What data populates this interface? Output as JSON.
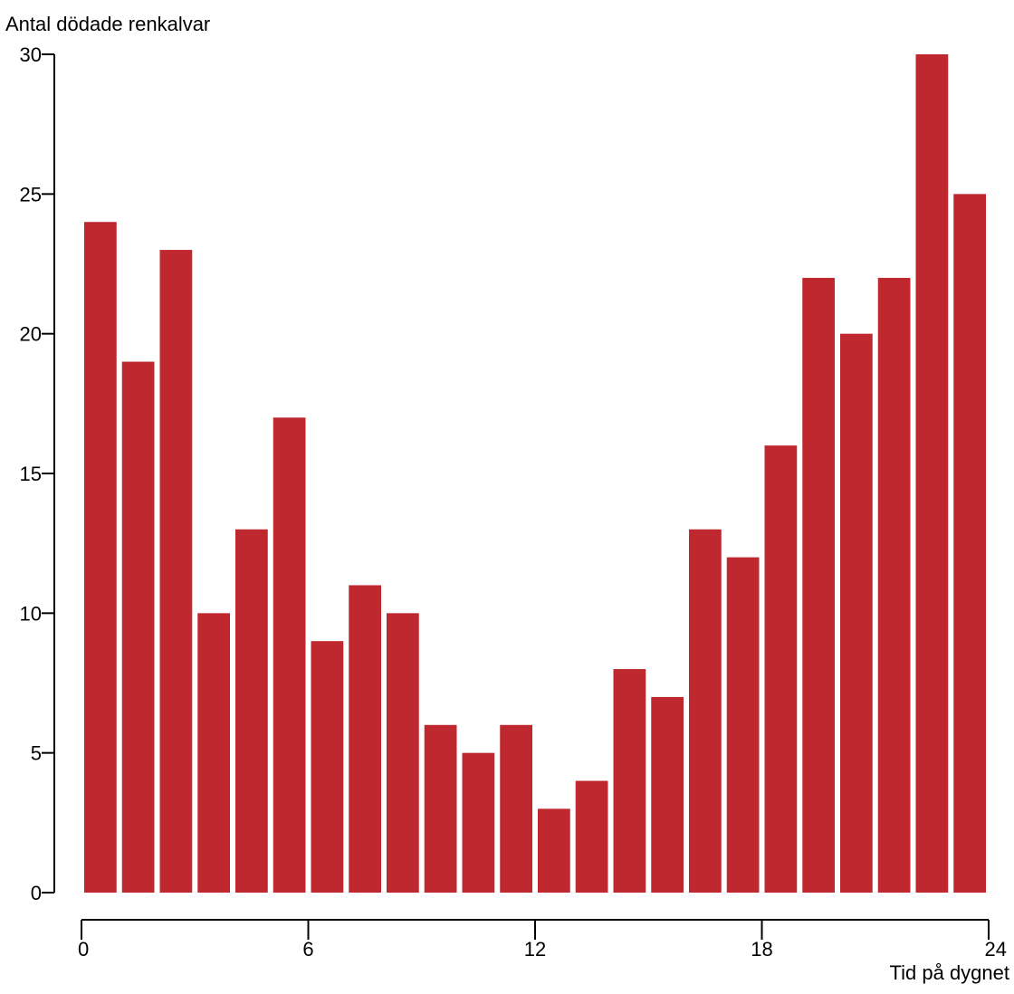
{
  "chart_data": {
    "type": "bar",
    "ylabel": "Antal dödade renkalvar",
    "xlabel": "Tid på dygnet",
    "x_ticks": [
      "0",
      "6",
      "12",
      "18",
      "24"
    ],
    "y_ticks": [
      "0",
      "5",
      "10",
      "15",
      "20",
      "25",
      "30"
    ],
    "ylim": [
      0,
      30
    ],
    "xlim": [
      0,
      24
    ],
    "bar_color": "#c0282f",
    "series": [
      {
        "values": [
          24,
          19,
          23,
          10,
          13,
          17,
          9,
          11,
          10,
          6,
          5,
          6,
          3,
          4,
          8,
          7,
          13,
          12,
          16,
          22,
          20,
          22,
          30,
          25
        ]
      }
    ],
    "grid": false,
    "legend": "none"
  }
}
